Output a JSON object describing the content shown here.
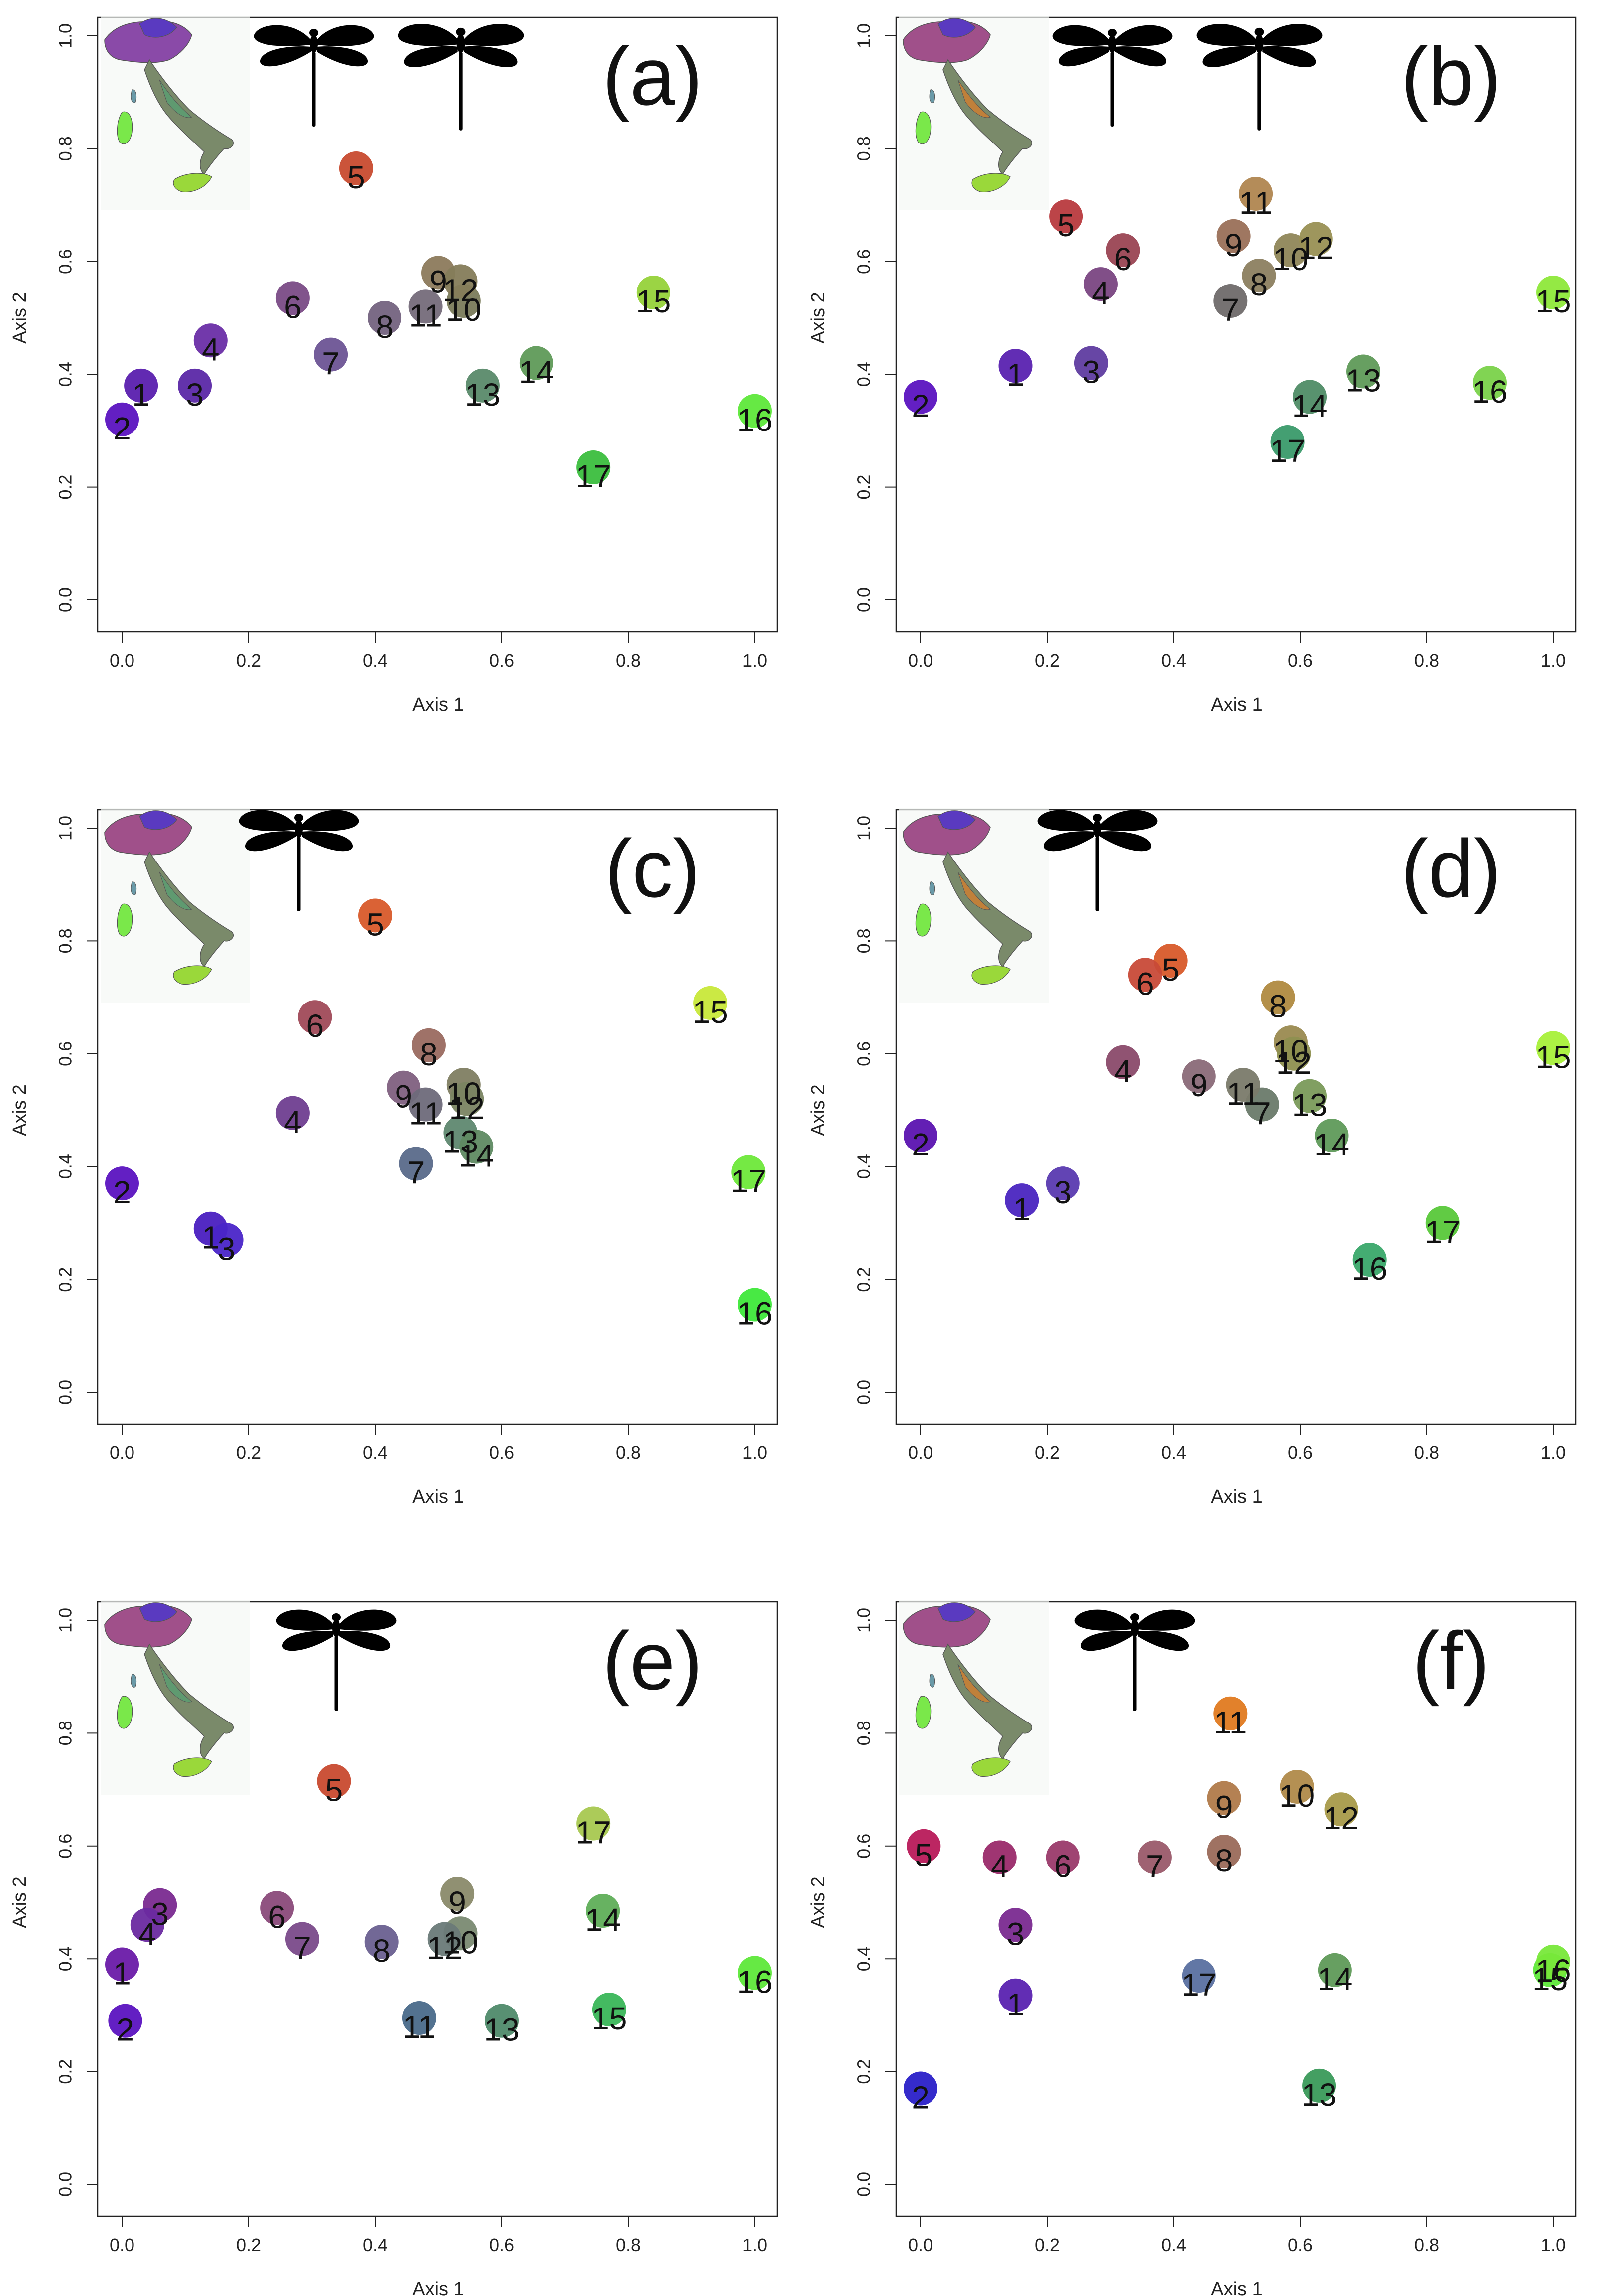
{
  "chart_data": [
    {
      "type": "scatter",
      "panel_label": "(a)",
      "xlabel": "Axis 1",
      "ylabel": "Axis 2",
      "xlim": [
        0,
        1
      ],
      "ylim": [
        0,
        1
      ],
      "x_ticks": [
        "0.0",
        "0.2",
        "0.4",
        "0.6",
        "0.8",
        "1.0"
      ],
      "y_ticks": [
        "0.0",
        "0.2",
        "0.4",
        "0.6",
        "0.8",
        "1.0"
      ],
      "dragonfly_icons": 2,
      "points": [
        {
          "label": "1",
          "x": 0.03,
          "y": 0.38,
          "color": "#5a1fae"
        },
        {
          "label": "2",
          "x": 0.0,
          "y": 0.32,
          "color": "#5b13c0"
        },
        {
          "label": "3",
          "x": 0.115,
          "y": 0.38,
          "color": "#5b28a6"
        },
        {
          "label": "4",
          "x": 0.14,
          "y": 0.46,
          "color": "#6a2ea6"
        },
        {
          "label": "5",
          "x": 0.37,
          "y": 0.765,
          "color": "#c84b2f"
        },
        {
          "label": "6",
          "x": 0.27,
          "y": 0.535,
          "color": "#7a4b86"
        },
        {
          "label": "7",
          "x": 0.33,
          "y": 0.435,
          "color": "#6d5495"
        },
        {
          "label": "8",
          "x": 0.415,
          "y": 0.5,
          "color": "#74637f"
        },
        {
          "label": "9",
          "x": 0.5,
          "y": 0.58,
          "color": "#8c7a5c"
        },
        {
          "label": "10",
          "x": 0.54,
          "y": 0.53,
          "color": "#7a7b5b"
        },
        {
          "label": "11",
          "x": 0.48,
          "y": 0.52,
          "color": "#756b7a"
        },
        {
          "label": "12",
          "x": 0.535,
          "y": 0.565,
          "color": "#857c5a"
        },
        {
          "label": "13",
          "x": 0.57,
          "y": 0.38,
          "color": "#5a8a6a"
        },
        {
          "label": "14",
          "x": 0.655,
          "y": 0.42,
          "color": "#5f9a58"
        },
        {
          "label": "15",
          "x": 0.84,
          "y": 0.545,
          "color": "#96d23a"
        },
        {
          "label": "16",
          "x": 1.0,
          "y": 0.335,
          "color": "#5ee83a"
        },
        {
          "label": "17",
          "x": 0.745,
          "y": 0.235,
          "color": "#3bbe3e"
        }
      ]
    },
    {
      "type": "scatter",
      "panel_label": "(b)",
      "xlabel": "Axis 1",
      "ylabel": "Axis 2",
      "xlim": [
        0,
        1
      ],
      "ylim": [
        0,
        1
      ],
      "x_ticks": [
        "0.0",
        "0.2",
        "0.4",
        "0.6",
        "0.8",
        "1.0"
      ],
      "y_ticks": [
        "0.0",
        "0.2",
        "0.4",
        "0.6",
        "0.8",
        "1.0"
      ],
      "dragonfly_icons": 2,
      "points": [
        {
          "label": "1",
          "x": 0.15,
          "y": 0.415,
          "color": "#5a22b0"
        },
        {
          "label": "2",
          "x": 0.0,
          "y": 0.36,
          "color": "#5b13c0"
        },
        {
          "label": "3",
          "x": 0.27,
          "y": 0.42,
          "color": "#5f3ca0"
        },
        {
          "label": "4",
          "x": 0.285,
          "y": 0.56,
          "color": "#7a4682"
        },
        {
          "label": "5",
          "x": 0.23,
          "y": 0.68,
          "color": "#b83a3e"
        },
        {
          "label": "6",
          "x": 0.32,
          "y": 0.62,
          "color": "#9a4553"
        },
        {
          "label": "7",
          "x": 0.49,
          "y": 0.53,
          "color": "#6f6a6a"
        },
        {
          "label": "8",
          "x": 0.535,
          "y": 0.575,
          "color": "#8c7f60"
        },
        {
          "label": "9",
          "x": 0.495,
          "y": 0.645,
          "color": "#9a7058"
        },
        {
          "label": "10",
          "x": 0.585,
          "y": 0.62,
          "color": "#8f8658"
        },
        {
          "label": "11",
          "x": 0.53,
          "y": 0.72,
          "color": "#b08650"
        },
        {
          "label": "12",
          "x": 0.625,
          "y": 0.64,
          "color": "#999054"
        },
        {
          "label": "13",
          "x": 0.7,
          "y": 0.405,
          "color": "#5f9a58"
        },
        {
          "label": "14",
          "x": 0.615,
          "y": 0.36,
          "color": "#4f8c66"
        },
        {
          "label": "15",
          "x": 1.0,
          "y": 0.545,
          "color": "#8ee83a"
        },
        {
          "label": "16",
          "x": 0.9,
          "y": 0.385,
          "color": "#7ad24a"
        },
        {
          "label": "17",
          "x": 0.58,
          "y": 0.28,
          "color": "#3a9a6a"
        }
      ]
    },
    {
      "type": "scatter",
      "panel_label": "(c)",
      "xlabel": "Axis 1",
      "ylabel": "Axis 2",
      "xlim": [
        0,
        1
      ],
      "ylim": [
        0,
        1
      ],
      "x_ticks": [
        "0.0",
        "0.2",
        "0.4",
        "0.6",
        "0.8",
        "1.0"
      ],
      "y_ticks": [
        "0.0",
        "0.2",
        "0.4",
        "0.6",
        "0.8",
        "1.0"
      ],
      "dragonfly_icons": 1,
      "points": [
        {
          "label": "1",
          "x": 0.14,
          "y": 0.29,
          "color": "#4a1fc0"
        },
        {
          "label": "2",
          "x": 0.0,
          "y": 0.37,
          "color": "#5b13c0"
        },
        {
          "label": "3",
          "x": 0.165,
          "y": 0.27,
          "color": "#4a25c8"
        },
        {
          "label": "4",
          "x": 0.27,
          "y": 0.495,
          "color": "#6f3e90"
        },
        {
          "label": "5",
          "x": 0.4,
          "y": 0.845,
          "color": "#d85a2a"
        },
        {
          "label": "6",
          "x": 0.305,
          "y": 0.665,
          "color": "#a04a58"
        },
        {
          "label": "7",
          "x": 0.465,
          "y": 0.405,
          "color": "#5a6a8a"
        },
        {
          "label": "8",
          "x": 0.485,
          "y": 0.615,
          "color": "#9a6a60"
        },
        {
          "label": "9",
          "x": 0.445,
          "y": 0.54,
          "color": "#7f6080"
        },
        {
          "label": "10",
          "x": 0.54,
          "y": 0.545,
          "color": "#7f7e62"
        },
        {
          "label": "11",
          "x": 0.48,
          "y": 0.51,
          "color": "#6e6a7a"
        },
        {
          "label": "12",
          "x": 0.545,
          "y": 0.52,
          "color": "#7a8462"
        },
        {
          "label": "13",
          "x": 0.535,
          "y": 0.46,
          "color": "#5f8870"
        },
        {
          "label": "14",
          "x": 0.56,
          "y": 0.435,
          "color": "#5f8a62"
        },
        {
          "label": "15",
          "x": 0.93,
          "y": 0.69,
          "color": "#c8e83a"
        },
        {
          "label": "16",
          "x": 1.0,
          "y": 0.155,
          "color": "#3ee83a"
        },
        {
          "label": "17",
          "x": 0.99,
          "y": 0.39,
          "color": "#6ee83a"
        }
      ]
    },
    {
      "type": "scatter",
      "panel_label": "(d)",
      "xlabel": "Axis 1",
      "ylabel": "Axis 2",
      "xlim": [
        0,
        1
      ],
      "ylim": [
        0,
        1
      ],
      "x_ticks": [
        "0.0",
        "0.2",
        "0.4",
        "0.6",
        "0.8",
        "1.0"
      ],
      "y_ticks": [
        "0.0",
        "0.2",
        "0.4",
        "0.6",
        "0.8",
        "1.0"
      ],
      "dragonfly_icons": 1,
      "points": [
        {
          "label": "1",
          "x": 0.16,
          "y": 0.34,
          "color": "#4a25c0"
        },
        {
          "label": "2",
          "x": 0.0,
          "y": 0.455,
          "color": "#5b13b0"
        },
        {
          "label": "3",
          "x": 0.225,
          "y": 0.37,
          "color": "#5a3ab0"
        },
        {
          "label": "4",
          "x": 0.32,
          "y": 0.585,
          "color": "#8a4a6a"
        },
        {
          "label": "5",
          "x": 0.395,
          "y": 0.765,
          "color": "#d85a2a"
        },
        {
          "label": "6",
          "x": 0.355,
          "y": 0.74,
          "color": "#c84a38"
        },
        {
          "label": "7",
          "x": 0.54,
          "y": 0.51,
          "color": "#6a7a6a"
        },
        {
          "label": "8",
          "x": 0.565,
          "y": 0.7,
          "color": "#b08a40"
        },
        {
          "label": "9",
          "x": 0.44,
          "y": 0.56,
          "color": "#8a6a78"
        },
        {
          "label": "10",
          "x": 0.585,
          "y": 0.62,
          "color": "#9a8a50"
        },
        {
          "label": "11",
          "x": 0.51,
          "y": 0.545,
          "color": "#7a7a6a"
        },
        {
          "label": "12",
          "x": 0.59,
          "y": 0.6,
          "color": "#8e9050"
        },
        {
          "label": "13",
          "x": 0.615,
          "y": 0.525,
          "color": "#7a9a5a"
        },
        {
          "label": "14",
          "x": 0.65,
          "y": 0.455,
          "color": "#5f9a5a"
        },
        {
          "label": "15",
          "x": 1.0,
          "y": 0.61,
          "color": "#a8f03a"
        },
        {
          "label": "16",
          "x": 0.71,
          "y": 0.235,
          "color": "#3aa86a"
        },
        {
          "label": "17",
          "x": 0.825,
          "y": 0.3,
          "color": "#58c83a"
        }
      ]
    },
    {
      "type": "scatter",
      "panel_label": "(e)",
      "xlabel": "Axis 1",
      "ylabel": "Axis 2",
      "xlim": [
        0,
        1
      ],
      "ylim": [
        0,
        1
      ],
      "x_ticks": [
        "0.0",
        "0.2",
        "0.4",
        "0.6",
        "0.8",
        "1.0"
      ],
      "y_ticks": [
        "0.0",
        "0.2",
        "0.4",
        "0.6",
        "0.8",
        "1.0"
      ],
      "dragonfly_icons": 1,
      "points": [
        {
          "label": "1",
          "x": 0.0,
          "y": 0.39,
          "color": "#6a1aa8"
        },
        {
          "label": "2",
          "x": 0.005,
          "y": 0.29,
          "color": "#5b13c0"
        },
        {
          "label": "3",
          "x": 0.06,
          "y": 0.495,
          "color": "#7a2a90"
        },
        {
          "label": "4",
          "x": 0.04,
          "y": 0.46,
          "color": "#6a2aa0"
        },
        {
          "label": "5",
          "x": 0.335,
          "y": 0.715,
          "color": "#c84a2f"
        },
        {
          "label": "6",
          "x": 0.245,
          "y": 0.49,
          "color": "#8a4a7a"
        },
        {
          "label": "7",
          "x": 0.285,
          "y": 0.435,
          "color": "#7a4a8a"
        },
        {
          "label": "8",
          "x": 0.41,
          "y": 0.43,
          "color": "#6a6090"
        },
        {
          "label": "9",
          "x": 0.53,
          "y": 0.515,
          "color": "#8a8a6a"
        },
        {
          "label": "10",
          "x": 0.535,
          "y": 0.445,
          "color": "#7a8a72"
        },
        {
          "label": "11",
          "x": 0.47,
          "y": 0.295,
          "color": "#4a6a8a"
        },
        {
          "label": "12",
          "x": 0.51,
          "y": 0.435,
          "color": "#6a7a78"
        },
        {
          "label": "13",
          "x": 0.6,
          "y": 0.29,
          "color": "#4f8a6a"
        },
        {
          "label": "14",
          "x": 0.76,
          "y": 0.485,
          "color": "#5fae58"
        },
        {
          "label": "15",
          "x": 0.77,
          "y": 0.31,
          "color": "#3ab658"
        },
        {
          "label": "16",
          "x": 1.0,
          "y": 0.375,
          "color": "#5ee83a"
        },
        {
          "label": "17",
          "x": 0.745,
          "y": 0.64,
          "color": "#a8c850"
        }
      ]
    },
    {
      "type": "scatter",
      "panel_label": "(f)",
      "xlabel": "Axis 1",
      "ylabel": "Axis 2",
      "xlim": [
        0,
        1
      ],
      "ylim": [
        0,
        1
      ],
      "x_ticks": [
        "0.0",
        "0.2",
        "0.4",
        "0.6",
        "0.8",
        "1.0"
      ],
      "y_ticks": [
        "0.0",
        "0.2",
        "0.4",
        "0.6",
        "0.8",
        "1.0"
      ],
      "dragonfly_icons": 1,
      "points": [
        {
          "label": "1",
          "x": 0.15,
          "y": 0.335,
          "color": "#5a22b0"
        },
        {
          "label": "2",
          "x": 0.0,
          "y": 0.17,
          "color": "#2a20c8"
        },
        {
          "label": "3",
          "x": 0.15,
          "y": 0.46,
          "color": "#7a2a90"
        },
        {
          "label": "4",
          "x": 0.125,
          "y": 0.58,
          "color": "#9a2a6a"
        },
        {
          "label": "5",
          "x": 0.005,
          "y": 0.6,
          "color": "#b81a5a"
        },
        {
          "label": "6",
          "x": 0.225,
          "y": 0.58,
          "color": "#9a3a6a"
        },
        {
          "label": "7",
          "x": 0.37,
          "y": 0.58,
          "color": "#9a5a6a"
        },
        {
          "label": "8",
          "x": 0.48,
          "y": 0.59,
          "color": "#9a6a5a"
        },
        {
          "label": "9",
          "x": 0.48,
          "y": 0.685,
          "color": "#b07a4a"
        },
        {
          "label": "10",
          "x": 0.595,
          "y": 0.705,
          "color": "#b08a4a"
        },
        {
          "label": "11",
          "x": 0.49,
          "y": 0.835,
          "color": "#e07a20"
        },
        {
          "label": "12",
          "x": 0.665,
          "y": 0.665,
          "color": "#a89a4a"
        },
        {
          "label": "13",
          "x": 0.63,
          "y": 0.175,
          "color": "#3a9a5a"
        },
        {
          "label": "14",
          "x": 0.655,
          "y": 0.38,
          "color": "#5f9a58"
        },
        {
          "label": "15",
          "x": 0.995,
          "y": 0.38,
          "color": "#5ee83a"
        },
        {
          "label": "16",
          "x": 1.0,
          "y": 0.395,
          "color": "#78e83a"
        },
        {
          "label": "17",
          "x": 0.44,
          "y": 0.37,
          "color": "#5a70a0"
        }
      ]
    }
  ]
}
